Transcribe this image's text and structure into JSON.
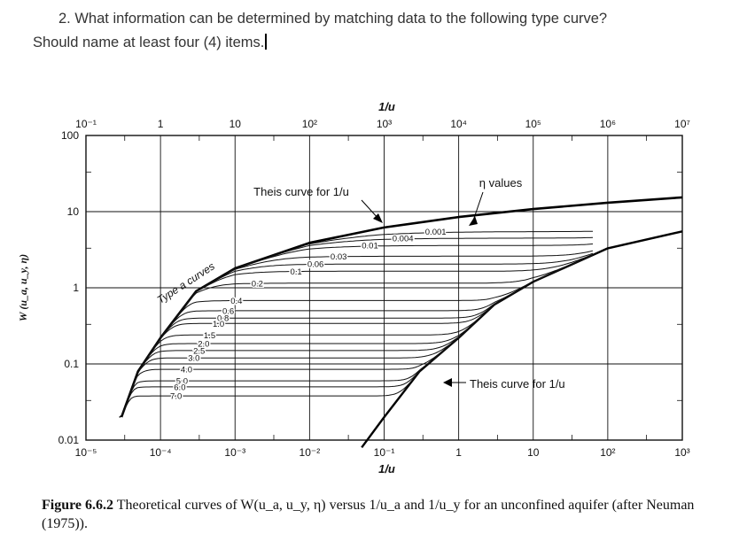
{
  "question": {
    "line1": "2.  What information can be determined by matching data to the following type curve?",
    "line2": "Should name at least four (4) items."
  },
  "chart_data": {
    "type": "line",
    "x_scale": "log",
    "y_scale": "log",
    "top_axis_label": "1/u_a",
    "bottom_axis_label": "1/u_y",
    "ylabel": "W (u_a, u_y, η)",
    "ylim": [
      0.01,
      100
    ],
    "top_ticks": [
      "10⁻¹",
      "1",
      "10",
      "10²",
      "10³",
      "10⁴",
      "10⁵",
      "10⁶",
      "10⁷"
    ],
    "bottom_ticks": [
      "10⁻⁵",
      "10⁻⁴",
      "10⁻³",
      "10⁻²",
      "10⁻¹",
      "1",
      "10",
      "10²",
      "10³"
    ],
    "y_ticks": [
      "100",
      "10",
      "1",
      "0.1",
      "0.01"
    ],
    "eta_values": [
      "0.001",
      "0.004",
      "0.01",
      "0.03",
      "0.06",
      "0.1",
      "0.2",
      "0.4",
      "0.6",
      "0.8",
      "1.0",
      "1.5",
      "2.0",
      "2.5",
      "3.0",
      "4.0",
      "5.0",
      "6.0",
      "7.0"
    ],
    "eta_plateau_W": [
      5.5,
      4.5,
      3.6,
      2.6,
      2.05,
      1.65,
      1.15,
      0.68,
      0.5,
      0.4,
      0.34,
      0.24,
      0.185,
      0.15,
      0.12,
      0.085,
      0.06,
      0.05,
      0.038
    ],
    "series": [
      {
        "name": "Theis curve for 1/u_a",
        "x_top": [
          0.3,
          0.5,
          1,
          3,
          10,
          100,
          1000,
          10000,
          100000,
          1000000,
          10000000
        ],
        "y": [
          0.02,
          0.08,
          0.22,
          0.9,
          1.8,
          3.9,
          6.2,
          8.5,
          10.8,
          13.1,
          15.4
        ]
      },
      {
        "name": "Theis curve for 1/u_y",
        "x_bottom": [
          0.05,
          0.1,
          0.3,
          1,
          3,
          10,
          100,
          1000
        ],
        "y": [
          0.008,
          0.02,
          0.08,
          0.22,
          0.6,
          1.2,
          3.3,
          5.5
        ]
      }
    ],
    "annotations": [
      "Type a curves",
      "η values",
      "Theis curve for 1/u_a",
      "Theis curve for 1/u_y"
    ]
  },
  "caption": {
    "label": "Figure 6.6.2",
    "text": " Theoretical curves of W(u_a, u_y, η) versus 1/u_a and 1/u_y for an unconfined aquifer (after Neuman (1975))."
  }
}
